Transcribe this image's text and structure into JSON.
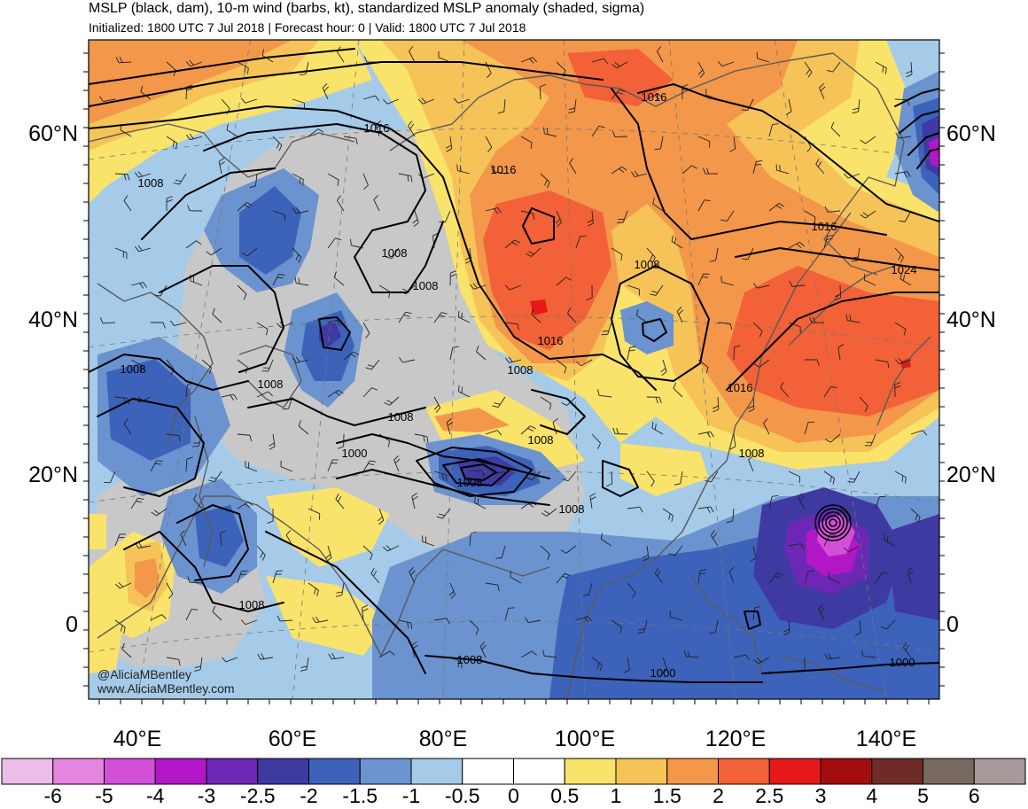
{
  "title": "MSLP (black, dam), 10-m wind (barbs, kt), standardized MSLP anomaly (shaded, sigma)",
  "subtitle": "Initialized: 1800 UTC 7 Jul 2018 | Forecast hour: 0 | Valid: 1800 UTC 7 Jul 2018",
  "latitude_labels": [
    "60°N",
    "40°N",
    "20°N",
    "0"
  ],
  "longitude_labels": [
    "40°E",
    "60°E",
    "80°E",
    "100°E",
    "120°E",
    "140°E"
  ],
  "isobar_labels": [
    "1016",
    "1016",
    "1016",
    "1016",
    "1016",
    "1016",
    "1024",
    "1008",
    "1008",
    "1008",
    "1008",
    "1008",
    "1008",
    "1008",
    "1008",
    "1008",
    "1008",
    "1008",
    "1008",
    "1008",
    "1008",
    "1000",
    "1000",
    "1000"
  ],
  "credit": {
    "handle": "@AliciaMBentley",
    "website": "www.AliciaMBentley.com"
  },
  "colorbar": {
    "labels": [
      "-6",
      "-5",
      "-4",
      "-3",
      "-2.5",
      "-2",
      "-1.5",
      "-1",
      "-0.5",
      "0",
      "0.5",
      "1",
      "1.5",
      "2",
      "2.5",
      "3",
      "4",
      "5",
      "6"
    ],
    "colors": [
      "#ecbde8",
      "#e585e2",
      "#d24fd8",
      "#b217c7",
      "#6c28b4",
      "#3e3aa2",
      "#3d62b9",
      "#6b93cf",
      "#a6cbe8",
      "#ffffff",
      "#ffffff",
      "#fae36a",
      "#f5c358",
      "#f3974a",
      "#f26137",
      "#e61919",
      "#a30d0d",
      "#6e2b27",
      "#77695f",
      "#a6999a"
    ]
  },
  "colors": {
    "land_neutral": "#c8c8c8",
    "coastline": "#5a5a5a",
    "isobar": "#000000"
  }
}
